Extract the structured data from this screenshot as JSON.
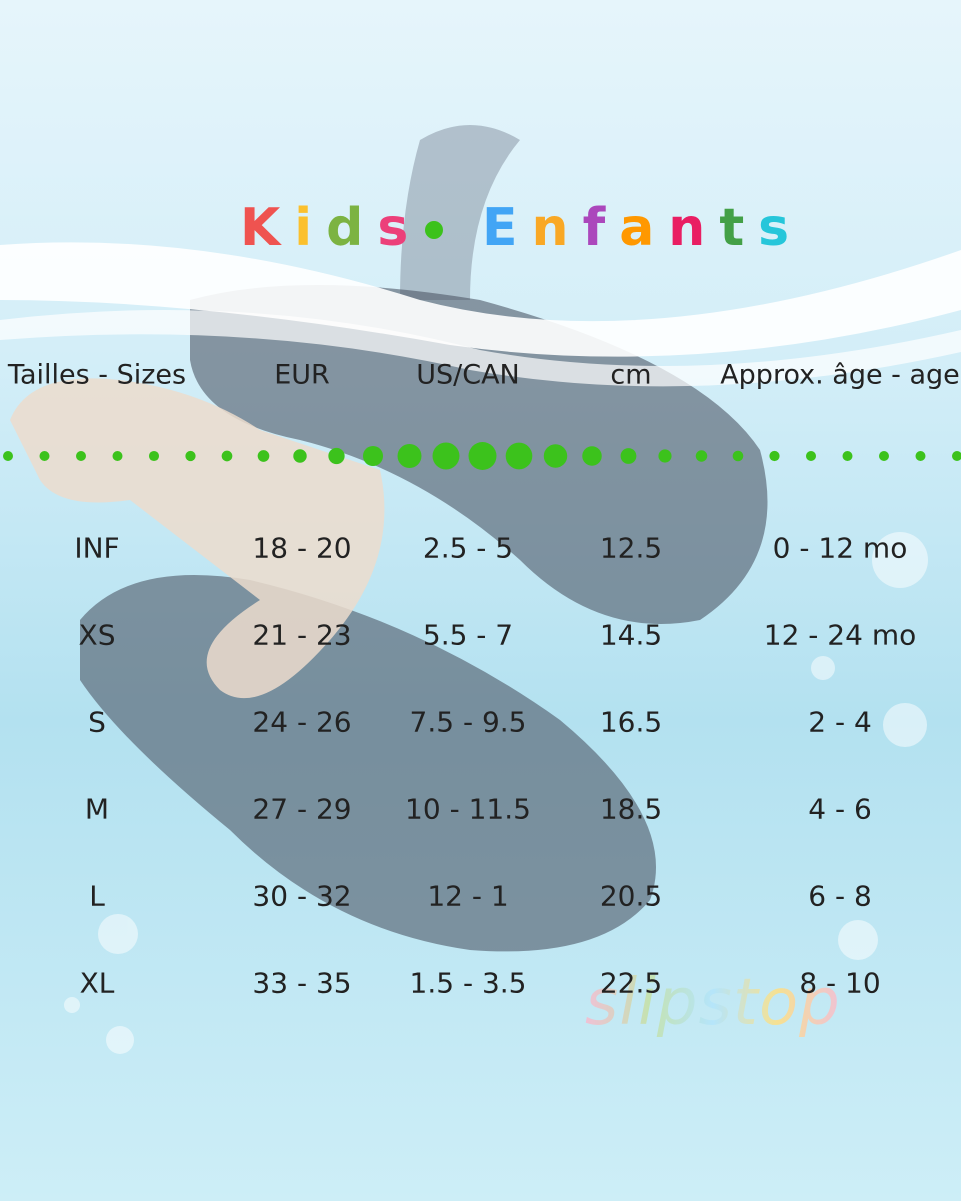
{
  "title": [
    "Kids",
    "Enfants"
  ],
  "table": {
    "header": [
      "Tailles - Sizes",
      "EUR",
      "US/CAN",
      "cm",
      "Approx. âge - age"
    ],
    "rows": [
      [
        "INF",
        "18 - 20",
        "2.5 - 5",
        "12.5",
        "0 - 12 mo"
      ],
      [
        "XS",
        "21 - 23",
        "5.5 - 7",
        "14.5",
        "12 - 24 mo"
      ],
      [
        "S",
        "24 - 26",
        "7.5 - 9.5",
        "16.5",
        "2 - 4"
      ],
      [
        "M",
        "27 - 29",
        "10 - 11.5",
        "18.5",
        "4 - 6"
      ],
      [
        "L",
        "30 - 32",
        "12 - 1",
        "20.5",
        "6 - 8"
      ],
      [
        "XL",
        "33 - 35",
        "1.5 - 3.5",
        "22.5",
        "8 - 10"
      ]
    ]
  },
  "logo": "slipstop"
}
